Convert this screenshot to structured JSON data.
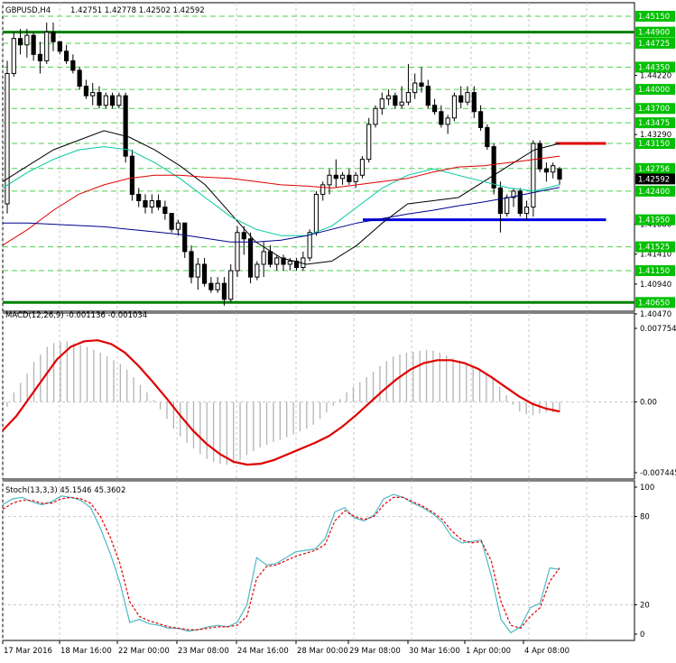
{
  "chart_data": [
    {
      "type": "candlestick",
      "panel": "price",
      "title": "GBPUSD,H4",
      "ohlc_header": [
        "1.42751",
        "1.42778",
        "1.42502",
        "1.42592"
      ],
      "ylim": [
        1.4047,
        1.4515
      ],
      "y_tick_labels": [
        1.4515,
        1.44725,
        1.4435,
        1.4422,
        1.44,
        1.437,
        1.43475,
        1.4329,
        1.4315,
        1.42756,
        1.42592,
        1.424,
        1.4195,
        1.4188,
        1.41525,
        1.4141,
        1.4115,
        1.4094,
        1.4065,
        1.4047
      ],
      "highlighted_labels": [
        {
          "value": 1.449,
          "text": "1.44900",
          "color": "#00c000"
        },
        {
          "value": 1.44725,
          "text": "1.44725",
          "color": "#00c000"
        },
        {
          "value": 1.4435,
          "text": "1.44350",
          "color": "#00c000"
        },
        {
          "value": 1.44,
          "text": "1.44000",
          "color": "#00c000"
        },
        {
          "value": 1.437,
          "text": "1.43700",
          "color": "#00c000"
        },
        {
          "value": 1.43475,
          "text": "1.43475",
          "color": "#00c000"
        },
        {
          "value": 1.4315,
          "text": "1.43150",
          "color": "#00c000"
        },
        {
          "value": 1.42756,
          "text": "1.42756",
          "color": "#00c000"
        },
        {
          "value": 1.42592,
          "text": "1.42592",
          "color": "#000000"
        },
        {
          "value": 1.424,
          "text": "1.42400",
          "color": "#00c000"
        },
        {
          "value": 1.4195,
          "text": "1.41950",
          "color": "#00c000"
        },
        {
          "value": 1.41525,
          "text": "1.41525",
          "color": "#00c000"
        },
        {
          "value": 1.4115,
          "text": "1.41150",
          "color": "#00c000"
        },
        {
          "value": 1.4065,
          "text": "1.40650",
          "color": "#00c000"
        },
        {
          "value": 1.4515,
          "text": "1.45150",
          "color": "#00c000"
        }
      ],
      "plain_labels": [
        "1.43290",
        "1.44220",
        "1.41880",
        "1.41410",
        "1.40940",
        "1.40470"
      ],
      "dashed_levels": [
        1.4515,
        1.44725,
        1.4435,
        1.44,
        1.437,
        1.43475,
        1.4315,
        1.42756,
        1.424,
        1.41525,
        1.4115
      ],
      "support_resistance": [
        {
          "value": 1.449,
          "color": "#008000",
          "from": 0,
          "to": 1
        },
        {
          "value": 1.4065,
          "color": "#008000",
          "from": 0,
          "to": 1
        },
        {
          "value": 1.4315,
          "color": "#e00000",
          "from": 0.875,
          "to": 0.955
        },
        {
          "value": 1.4195,
          "color": "#0000e0",
          "from": 0.57,
          "to": 0.955
        }
      ],
      "candles": [
        [
          1.422,
          1.4445,
          1.4205,
          1.4425
        ],
        [
          1.4425,
          1.449,
          1.442,
          1.448
        ],
        [
          1.448,
          1.4495,
          1.4455,
          1.447
        ],
        [
          1.447,
          1.4495,
          1.445,
          1.4485
        ],
        [
          1.4485,
          1.449,
          1.4445,
          1.4455
        ],
        [
          1.4455,
          1.4475,
          1.4425,
          1.4445
        ],
        [
          1.4445,
          1.4505,
          1.444,
          1.449
        ],
        [
          1.449,
          1.4505,
          1.446,
          1.4475
        ],
        [
          1.4475,
          1.4475,
          1.4455,
          1.446
        ],
        [
          1.446,
          1.447,
          1.444,
          1.4445
        ],
        [
          1.4445,
          1.4455,
          1.4425,
          1.443
        ],
        [
          1.443,
          1.4435,
          1.44,
          1.4405
        ],
        [
          1.4405,
          1.4415,
          1.4385,
          1.439
        ],
        [
          1.439,
          1.441,
          1.4375,
          1.4395
        ],
        [
          1.4395,
          1.4405,
          1.437,
          1.4375
        ],
        [
          1.4375,
          1.4395,
          1.437,
          1.439
        ],
        [
          1.439,
          1.4395,
          1.437,
          1.4375
        ],
        [
          1.4375,
          1.4395,
          1.437,
          1.439
        ],
        [
          1.439,
          1.4395,
          1.4285,
          1.4295
        ],
        [
          1.4295,
          1.4305,
          1.4225,
          1.4235
        ],
        [
          1.4235,
          1.4245,
          1.4215,
          1.4225
        ],
        [
          1.4225,
          1.4235,
          1.4205,
          1.4215
        ],
        [
          1.4215,
          1.4235,
          1.4205,
          1.4225
        ],
        [
          1.4225,
          1.4235,
          1.421,
          1.4215
        ],
        [
          1.4215,
          1.4225,
          1.4195,
          1.4205
        ],
        [
          1.4205,
          1.4205,
          1.4175,
          1.418
        ],
        [
          1.418,
          1.4195,
          1.417,
          1.419
        ],
        [
          1.419,
          1.419,
          1.4135,
          1.4145
        ],
        [
          1.4145,
          1.4155,
          1.4095,
          1.4105
        ],
        [
          1.4105,
          1.4135,
          1.4085,
          1.4125
        ],
        [
          1.4125,
          1.4135,
          1.409,
          1.4095
        ],
        [
          1.4095,
          1.4105,
          1.408,
          1.4085
        ],
        [
          1.4085,
          1.4105,
          1.408,
          1.4095
        ],
        [
          1.4095,
          1.4105,
          1.406,
          1.407
        ],
        [
          1.407,
          1.4125,
          1.4065,
          1.4115
        ],
        [
          1.4115,
          1.4185,
          1.4105,
          1.4175
        ],
        [
          1.4175,
          1.4185,
          1.414,
          1.4165
        ],
        [
          1.4165,
          1.4175,
          1.4095,
          1.4105
        ],
        [
          1.4105,
          1.413,
          1.41,
          1.4125
        ],
        [
          1.4125,
          1.416,
          1.4105,
          1.4145
        ],
        [
          1.4145,
          1.4155,
          1.412,
          1.4125
        ],
        [
          1.4125,
          1.414,
          1.4115,
          1.4135
        ],
        [
          1.4135,
          1.414,
          1.4115,
          1.4125
        ],
        [
          1.4125,
          1.4135,
          1.4115,
          1.413
        ],
        [
          1.413,
          1.4135,
          1.4115,
          1.412
        ],
        [
          1.412,
          1.4145,
          1.4115,
          1.4135
        ],
        [
          1.4135,
          1.418,
          1.413,
          1.4175
        ],
        [
          1.4175,
          1.424,
          1.417,
          1.4235
        ],
        [
          1.4235,
          1.4255,
          1.4225,
          1.425
        ],
        [
          1.425,
          1.4275,
          1.4235,
          1.4265
        ],
        [
          1.4265,
          1.429,
          1.4245,
          1.426
        ],
        [
          1.426,
          1.427,
          1.425,
          1.4265
        ],
        [
          1.4265,
          1.4275,
          1.425,
          1.4255
        ],
        [
          1.4255,
          1.427,
          1.4245,
          1.4265
        ],
        [
          1.4265,
          1.4295,
          1.426,
          1.429
        ],
        [
          1.429,
          1.4355,
          1.4285,
          1.4345
        ],
        [
          1.4345,
          1.4375,
          1.434,
          1.437
        ],
        [
          1.437,
          1.4395,
          1.436,
          1.4385
        ],
        [
          1.4385,
          1.44,
          1.4375,
          1.439
        ],
        [
          1.439,
          1.4395,
          1.437,
          1.4375
        ],
        [
          1.4375,
          1.4405,
          1.437,
          1.438
        ],
        [
          1.438,
          1.444,
          1.4375,
          1.4395
        ],
        [
          1.4395,
          1.4425,
          1.4385,
          1.441
        ],
        [
          1.441,
          1.4435,
          1.4395,
          1.4405
        ],
        [
          1.4405,
          1.4415,
          1.437,
          1.4375
        ],
        [
          1.4375,
          1.4385,
          1.436,
          1.4365
        ],
        [
          1.4365,
          1.4375,
          1.434,
          1.4345
        ],
        [
          1.4345,
          1.436,
          1.433,
          1.4355
        ],
        [
          1.4355,
          1.4395,
          1.435,
          1.439
        ],
        [
          1.439,
          1.4405,
          1.437,
          1.438
        ],
        [
          1.438,
          1.4405,
          1.4375,
          1.4395
        ],
        [
          1.4395,
          1.4405,
          1.4355,
          1.4365
        ],
        [
          1.4365,
          1.4375,
          1.4335,
          1.434
        ],
        [
          1.434,
          1.4345,
          1.4305,
          1.431
        ],
        [
          1.431,
          1.4315,
          1.4235,
          1.4245
        ],
        [
          1.4245,
          1.4255,
          1.4175,
          1.4205
        ],
        [
          1.4205,
          1.4235,
          1.42,
          1.423
        ],
        [
          1.423,
          1.4245,
          1.4215,
          1.424
        ],
        [
          1.424,
          1.4245,
          1.42,
          1.4205
        ],
        [
          1.4205,
          1.4225,
          1.4195,
          1.4215
        ],
        [
          1.4215,
          1.432,
          1.42,
          1.4315
        ],
        [
          1.4315,
          1.432,
          1.427,
          1.4275
        ],
        [
          1.4275,
          1.4285,
          1.4255,
          1.427
        ],
        [
          1.427,
          1.4285,
          1.426,
          1.428
        ],
        [
          1.4275,
          1.4278,
          1.425,
          1.4259
        ]
      ],
      "moving_averages": [
        {
          "name": "MA fast",
          "color": "#000000",
          "values": [
            1.4255,
            1.428,
            1.4305,
            1.432,
            1.4335,
            1.4325,
            1.4305,
            1.428,
            1.425,
            1.4205,
            1.416,
            1.4135,
            1.4125,
            1.413,
            1.4155,
            1.419,
            1.422,
            1.4225,
            1.423,
            1.4255,
            1.428,
            1.4305,
            1.4315
          ]
        },
        {
          "name": "MA medium",
          "color": "#00c8a0",
          "values": [
            1.4245,
            1.427,
            1.429,
            1.4305,
            1.431,
            1.4305,
            1.4285,
            1.426,
            1.423,
            1.42,
            1.418,
            1.417,
            1.417,
            1.4185,
            1.4215,
            1.4245,
            1.4265,
            1.4275,
            1.4265,
            1.4255,
            1.4245,
            1.424,
            1.425
          ]
        },
        {
          "name": "MA slow",
          "color": "#e00000",
          "values": [
            1.4155,
            1.418,
            1.421,
            1.4235,
            1.425,
            1.426,
            1.4265,
            1.4265,
            1.4262,
            1.426,
            1.4255,
            1.425,
            1.4248,
            1.4245,
            1.425,
            1.4255,
            1.426,
            1.427,
            1.4278,
            1.428,
            1.4285,
            1.429,
            1.4295
          ]
        },
        {
          "name": "MA slowest",
          "color": "#00008b",
          "values": [
            1.419,
            1.419,
            1.4188,
            1.4186,
            1.4184,
            1.418,
            1.4176,
            1.4172,
            1.4166,
            1.416,
            1.416,
            1.4163,
            1.417,
            1.418,
            1.419,
            1.4197,
            1.4204,
            1.421,
            1.4217,
            1.4223,
            1.423,
            1.4238,
            1.4246
          ]
        }
      ]
    },
    {
      "type": "histogram+line",
      "panel": "macd",
      "title": "MACD(12,26,9) -0.001136 -0.001034",
      "ylim": [
        -0.007445,
        0.007754
      ],
      "y_tick_labels": [
        "0.007754",
        "0.00",
        "-0.007445"
      ],
      "histogram": [
        -0.0005,
        0.001,
        0.002,
        0.003,
        0.0042,
        0.005,
        0.0058,
        0.0062,
        0.0063,
        0.0064,
        0.0062,
        0.006,
        0.0058,
        0.0055,
        0.0052,
        0.0048,
        0.0044,
        0.004,
        0.0034,
        0.0026,
        0.0018,
        0.001,
        0.0002,
        -0.0008,
        -0.0018,
        -0.0028,
        -0.0036,
        -0.0043,
        -0.0049,
        -0.0055,
        -0.006,
        -0.0063,
        -0.0065,
        -0.0066,
        -0.0065,
        -0.0061,
        -0.0056,
        -0.0052,
        -0.0048,
        -0.0045,
        -0.0042,
        -0.004,
        -0.0037,
        -0.0034,
        -0.0031,
        -0.0028,
        -0.0024,
        -0.0018,
        -0.0011,
        -0.0004,
        0.0003,
        0.001,
        0.0016,
        0.0021,
        0.0026,
        0.0032,
        0.0038,
        0.0043,
        0.0048,
        0.005,
        0.0052,
        0.0053,
        0.0054,
        0.0055,
        0.0054,
        0.0052,
        0.0049,
        0.0046,
        0.0043,
        0.004,
        0.0037,
        0.0034,
        0.003,
        0.0024,
        0.0016,
        0.0007,
        -0.0003,
        -0.001,
        -0.0013,
        -0.0014,
        -0.0012,
        -0.0011,
        -0.0011,
        -0.0011
      ],
      "signal": [
        -0.003,
        -0.0015,
        0.0005,
        0.0025,
        0.0045,
        0.0058,
        0.0064,
        0.0065,
        0.0061,
        0.0052,
        0.0038,
        0.0022,
        0.0005,
        -0.0013,
        -0.003,
        -0.0044,
        -0.0055,
        -0.0063,
        -0.0066,
        -0.0065,
        -0.0061,
        -0.0055,
        -0.0049,
        -0.0043,
        -0.0036,
        -0.0026,
        -0.0014,
        -0.0001,
        0.0012,
        0.0024,
        0.0034,
        0.0041,
        0.0044,
        0.0044,
        0.0041,
        0.0035,
        0.0026,
        0.0016,
        0.0006,
        -0.0002,
        -0.0007,
        -0.001
      ]
    },
    {
      "type": "line",
      "panel": "stochastic",
      "title": "Stoch(13,3,3) 45.1546 45.3602",
      "ylim": [
        0,
        100
      ],
      "y_tick_labels": [
        "100",
        "80",
        "20",
        "0"
      ],
      "series": [
        {
          "name": "",
          "color": "#4fb8c8",
          "values": [
            88,
            92,
            93,
            90,
            88,
            90,
            94,
            93,
            91,
            86,
            72,
            55,
            35,
            8,
            10,
            7,
            6,
            4,
            4,
            2,
            3,
            5,
            6,
            5,
            8,
            20,
            52,
            47,
            48,
            52,
            56,
            57,
            58,
            65,
            83,
            86,
            79,
            77,
            81,
            92,
            95,
            93,
            89,
            86,
            82,
            76,
            66,
            62,
            63,
            64,
            40,
            10,
            1,
            5,
            18,
            21,
            45,
            44
          ]
        },
        {
          "name": "",
          "color": "#e00000",
          "values": [
            85,
            89,
            91,
            91,
            89,
            89,
            92,
            93,
            92,
            89,
            80,
            66,
            48,
            22,
            12,
            9,
            7,
            5,
            4,
            3,
            3,
            4,
            5,
            5,
            6,
            12,
            38,
            46,
            47,
            50,
            53,
            55,
            57,
            61,
            77,
            84,
            80,
            78,
            80,
            88,
            93,
            93,
            90,
            87,
            83,
            78,
            70,
            64,
            62,
            63,
            50,
            22,
            6,
            4,
            12,
            18,
            36,
            45
          ]
        }
      ]
    }
  ],
  "x_tick_labels": [
    "17 Mar 2016",
    "18 Mar 16:00",
    "22 Mar 00:00",
    "23 Mar 08:00",
    "24 Mar 16:00",
    "28 Mar 00:00",
    "29 Mar 08:00",
    "30 Mar 16:00",
    "1 Apr 00:00",
    "4 Apr 08:00"
  ],
  "colors": {
    "background": "#ffffff",
    "grid": "#c8c8c8",
    "level_dash": "#00c000",
    "candle_up": "#ffffff",
    "candle_down": "#000000",
    "macd_hist": "#b4b4b4",
    "macd_signal": "#e00000"
  }
}
